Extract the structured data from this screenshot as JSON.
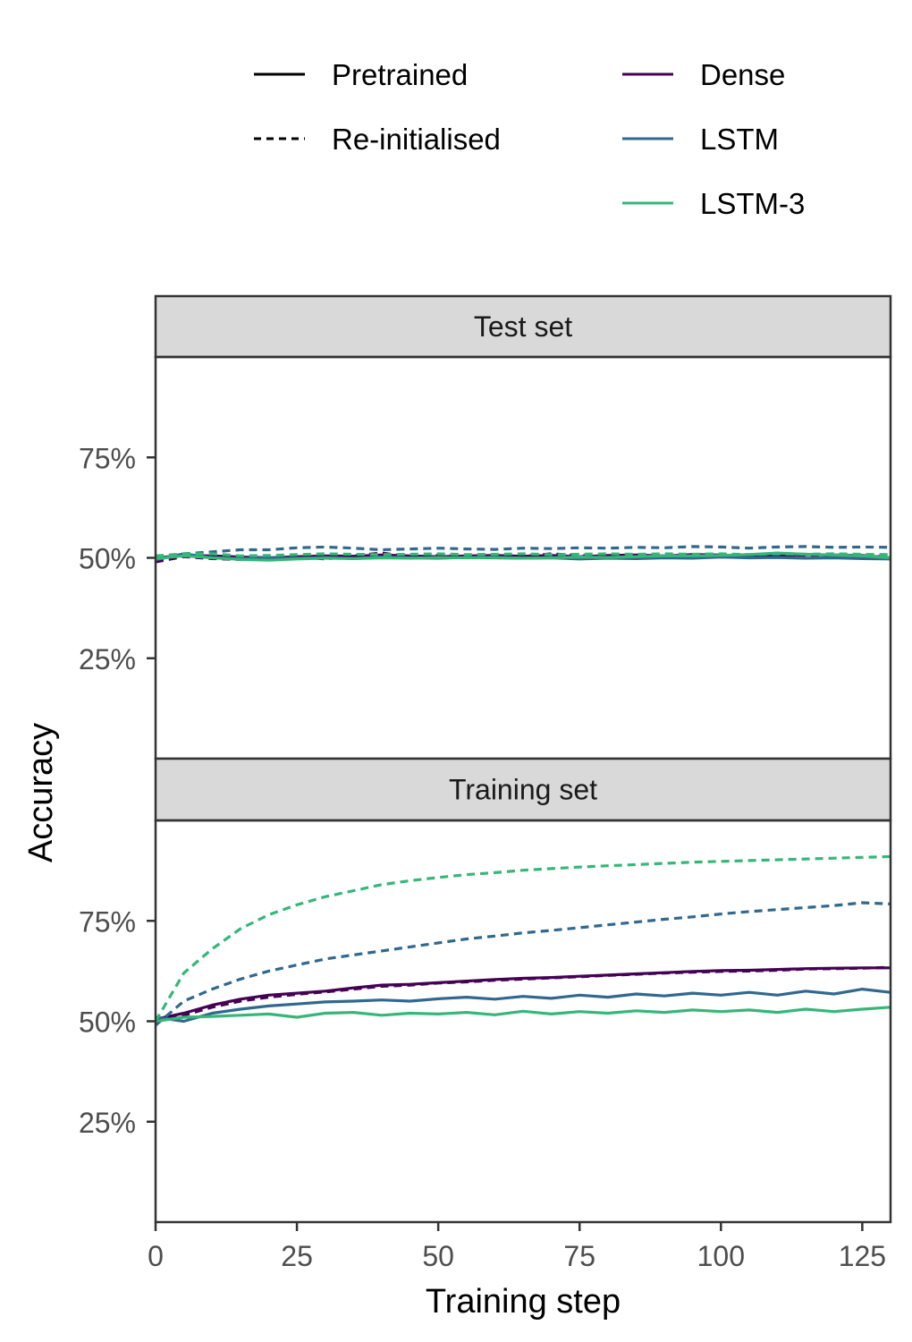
{
  "chart_data": {
    "type": "line",
    "xlabel": "Training step",
    "ylabel": "Accuracy",
    "x_range": [
      0,
      130
    ],
    "y_range": [
      0.0,
      1.0
    ],
    "x_ticks": [
      0,
      25,
      50,
      75,
      100,
      125
    ],
    "x_tick_labels": [
      "0",
      "25",
      "50",
      "75",
      "100",
      "125"
    ],
    "y_ticks": [
      0.25,
      0.5,
      0.75
    ],
    "y_tick_labels": [
      "25%",
      "50%",
      "75%"
    ],
    "grid": false,
    "legend": {
      "placement": "top",
      "linetype_entries": [
        {
          "label": "Pretrained",
          "dash": "solid"
        },
        {
          "label": "Re-initialised",
          "dash": "dotted"
        }
      ],
      "model_entries": [
        {
          "label": "Dense",
          "color": "#440154"
        },
        {
          "label": "LSTM",
          "color": "#31688e"
        },
        {
          "label": "LSTM-3",
          "color": "#35b779"
        }
      ]
    },
    "panels": [
      {
        "title": "Test set",
        "series": [
          {
            "model": "Dense",
            "init": "Pretrained",
            "color": "#440154",
            "dash": "solid",
            "x": [
              0,
              5,
              10,
              15,
              20,
              25,
              30,
              35,
              40,
              45,
              50,
              55,
              60,
              65,
              70,
              75,
              80,
              85,
              90,
              95,
              100,
              105,
              110,
              115,
              120,
              125,
              130
            ],
            "y": [
              0.5,
              0.506,
              0.505,
              0.502,
              0.5,
              0.503,
              0.505,
              0.504,
              0.507,
              0.505,
              0.503,
              0.505,
              0.506,
              0.504,
              0.506,
              0.503,
              0.506,
              0.507,
              0.505,
              0.508,
              0.507,
              0.505,
              0.506,
              0.508,
              0.507,
              0.506,
              0.5
            ]
          },
          {
            "model": "Dense",
            "init": "Re-initialised",
            "color": "#440154",
            "dash": "dotted",
            "x": [
              0,
              5,
              10,
              15,
              20,
              25,
              30,
              35,
              40,
              45,
              50,
              55,
              60,
              65,
              70,
              75,
              80,
              85,
              90,
              95,
              100,
              105,
              110,
              115,
              120,
              125,
              130
            ],
            "y": [
              0.49,
              0.503,
              0.498,
              0.496,
              0.499,
              0.502,
              0.497,
              0.505,
              0.512,
              0.502,
              0.506,
              0.503,
              0.505,
              0.504,
              0.51,
              0.506,
              0.503,
              0.507,
              0.505,
              0.508,
              0.506,
              0.505,
              0.51,
              0.506,
              0.507,
              0.505,
              0.503
            ]
          },
          {
            "model": "LSTM",
            "init": "Pretrained",
            "color": "#31688e",
            "dash": "solid",
            "x": [
              0,
              5,
              10,
              15,
              20,
              25,
              30,
              35,
              40,
              45,
              50,
              55,
              60,
              65,
              70,
              75,
              80,
              85,
              90,
              95,
              100,
              105,
              110,
              115,
              120,
              125,
              130
            ],
            "y": [
              0.495,
              0.51,
              0.5,
              0.498,
              0.5,
              0.499,
              0.501,
              0.498,
              0.502,
              0.5,
              0.499,
              0.501,
              0.5,
              0.499,
              0.5,
              0.497,
              0.499,
              0.498,
              0.5,
              0.499,
              0.502,
              0.5,
              0.501,
              0.499,
              0.5,
              0.498,
              0.497
            ]
          },
          {
            "model": "LSTM",
            "init": "Re-initialised",
            "color": "#31688e",
            "dash": "dotted",
            "x": [
              0,
              5,
              10,
              15,
              20,
              25,
              30,
              35,
              40,
              45,
              50,
              55,
              60,
              65,
              70,
              75,
              80,
              85,
              90,
              95,
              100,
              105,
              110,
              115,
              120,
              125,
              130
            ],
            "y": [
              0.5,
              0.51,
              0.515,
              0.52,
              0.52,
              0.525,
              0.527,
              0.524,
              0.52,
              0.522,
              0.524,
              0.522,
              0.521,
              0.524,
              0.523,
              0.525,
              0.524,
              0.526,
              0.525,
              0.528,
              0.527,
              0.524,
              0.527,
              0.528,
              0.526,
              0.527,
              0.526
            ]
          },
          {
            "model": "LSTM-3",
            "init": "Pretrained",
            "color": "#35b779",
            "dash": "solid",
            "x": [
              0,
              5,
              10,
              15,
              20,
              25,
              30,
              35,
              40,
              45,
              50,
              55,
              60,
              65,
              70,
              75,
              80,
              85,
              90,
              95,
              100,
              105,
              110,
              115,
              120,
              125,
              130
            ],
            "y": [
              0.498,
              0.505,
              0.5,
              0.496,
              0.494,
              0.497,
              0.499,
              0.498,
              0.5,
              0.499,
              0.501,
              0.5,
              0.501,
              0.499,
              0.5,
              0.502,
              0.501,
              0.503,
              0.505,
              0.505,
              0.506,
              0.508,
              0.512,
              0.509,
              0.507,
              0.505,
              0.5
            ]
          },
          {
            "model": "LSTM-3",
            "init": "Re-initialised",
            "color": "#35b779",
            "dash": "dotted",
            "x": [
              0,
              5,
              10,
              15,
              20,
              25,
              30,
              35,
              40,
              45,
              50,
              55,
              60,
              65,
              70,
              75,
              80,
              85,
              90,
              95,
              100,
              105,
              110,
              115,
              120,
              125,
              130
            ],
            "y": [
              0.505,
              0.51,
              0.51,
              0.505,
              0.506,
              0.508,
              0.51,
              0.509,
              0.508,
              0.509,
              0.51,
              0.508,
              0.509,
              0.51,
              0.508,
              0.509,
              0.51,
              0.509,
              0.51,
              0.509,
              0.51,
              0.508,
              0.51,
              0.509,
              0.51,
              0.509,
              0.508
            ]
          }
        ]
      },
      {
        "title": "Training set",
        "series": [
          {
            "model": "Dense",
            "init": "Pretrained",
            "color": "#440154",
            "dash": "solid",
            "x": [
              0,
              5,
              10,
              15,
              20,
              25,
              30,
              35,
              40,
              45,
              50,
              55,
              60,
              65,
              70,
              75,
              80,
              85,
              90,
              95,
              100,
              105,
              110,
              115,
              120,
              125,
              130
            ],
            "y": [
              0.505,
              0.52,
              0.54,
              0.555,
              0.565,
              0.57,
              0.575,
              0.583,
              0.59,
              0.592,
              0.596,
              0.6,
              0.604,
              0.607,
              0.609,
              0.612,
              0.615,
              0.618,
              0.621,
              0.624,
              0.626,
              0.627,
              0.629,
              0.631,
              0.632,
              0.633,
              0.633
            ]
          },
          {
            "model": "Dense",
            "init": "Re-initialised",
            "color": "#440154",
            "dash": "dotted",
            "x": [
              0,
              5,
              10,
              15,
              20,
              25,
              30,
              35,
              40,
              45,
              50,
              55,
              60,
              65,
              70,
              75,
              80,
              85,
              90,
              95,
              100,
              105,
              110,
              115,
              120,
              125,
              130
            ],
            "y": [
              0.5,
              0.515,
              0.535,
              0.55,
              0.56,
              0.567,
              0.573,
              0.58,
              0.587,
              0.59,
              0.595,
              0.598,
              0.602,
              0.605,
              0.608,
              0.611,
              0.614,
              0.617,
              0.62,
              0.622,
              0.624,
              0.625,
              0.627,
              0.63,
              0.631,
              0.632,
              0.634
            ]
          },
          {
            "model": "LSTM",
            "init": "Pretrained",
            "color": "#31688e",
            "dash": "solid",
            "x": [
              0,
              5,
              10,
              15,
              20,
              25,
              30,
              35,
              40,
              45,
              50,
              55,
              60,
              65,
              70,
              75,
              80,
              85,
              90,
              95,
              100,
              105,
              110,
              115,
              120,
              125,
              130
            ],
            "y": [
              0.51,
              0.5,
              0.52,
              0.53,
              0.538,
              0.543,
              0.548,
              0.55,
              0.553,
              0.55,
              0.556,
              0.56,
              0.555,
              0.562,
              0.557,
              0.565,
              0.56,
              0.568,
              0.563,
              0.57,
              0.565,
              0.572,
              0.565,
              0.575,
              0.568,
              0.58,
              0.572
            ]
          },
          {
            "model": "LSTM",
            "init": "Re-initialised",
            "color": "#31688e",
            "dash": "dotted",
            "x": [
              0,
              5,
              10,
              15,
              20,
              25,
              30,
              35,
              40,
              45,
              50,
              55,
              60,
              65,
              70,
              75,
              80,
              85,
              90,
              95,
              100,
              105,
              110,
              115,
              120,
              125,
              130
            ],
            "y": [
              0.49,
              0.55,
              0.58,
              0.605,
              0.625,
              0.64,
              0.655,
              0.665,
              0.675,
              0.685,
              0.695,
              0.705,
              0.712,
              0.72,
              0.726,
              0.733,
              0.74,
              0.747,
              0.754,
              0.76,
              0.767,
              0.773,
              0.778,
              0.783,
              0.788,
              0.795,
              0.792
            ]
          },
          {
            "model": "LSTM-3",
            "init": "Pretrained",
            "color": "#35b779",
            "dash": "solid",
            "x": [
              0,
              5,
              10,
              15,
              20,
              25,
              30,
              35,
              40,
              45,
              50,
              55,
              60,
              65,
              70,
              75,
              80,
              85,
              90,
              95,
              100,
              105,
              110,
              115,
              120,
              125,
              130
            ],
            "y": [
              0.5,
              0.51,
              0.512,
              0.515,
              0.518,
              0.51,
              0.52,
              0.522,
              0.515,
              0.52,
              0.518,
              0.522,
              0.516,
              0.525,
              0.518,
              0.524,
              0.52,
              0.526,
              0.522,
              0.528,
              0.524,
              0.528,
              0.522,
              0.53,
              0.524,
              0.53,
              0.535
            ]
          },
          {
            "model": "LSTM-3",
            "init": "Re-initialised",
            "color": "#35b779",
            "dash": "dotted",
            "x": [
              0,
              5,
              10,
              15,
              20,
              25,
              30,
              35,
              40,
              45,
              50,
              55,
              60,
              65,
              70,
              75,
              80,
              85,
              90,
              95,
              100,
              105,
              110,
              115,
              120,
              125,
              130
            ],
            "y": [
              0.5,
              0.62,
              0.68,
              0.73,
              0.765,
              0.79,
              0.81,
              0.825,
              0.84,
              0.85,
              0.858,
              0.865,
              0.87,
              0.876,
              0.88,
              0.884,
              0.887,
              0.89,
              0.893,
              0.896,
              0.898,
              0.9,
              0.902,
              0.904,
              0.906,
              0.908,
              0.91
            ]
          }
        ]
      }
    ]
  }
}
